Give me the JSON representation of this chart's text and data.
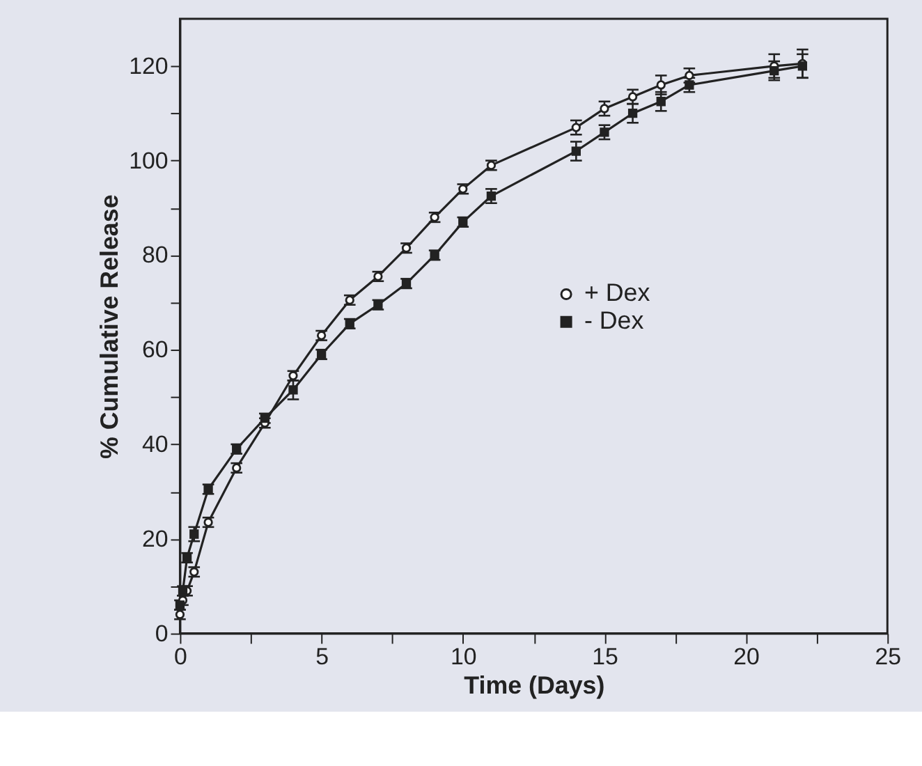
{
  "chart_data": {
    "type": "line",
    "xlabel": "Time  (Days)",
    "ylabel": "% Cumulative Release",
    "x": [
      0,
      0.1,
      0.25,
      0.5,
      1,
      2,
      3,
      4,
      5,
      6,
      7,
      8,
      9,
      10,
      11,
      14,
      15,
      16,
      17,
      18,
      21,
      22
    ],
    "series": [
      {
        "name": "+ Dex",
        "color": "#222222",
        "marker": "circle",
        "values": [
          4,
          7,
          9,
          13,
          23.5,
          35,
          44.5,
          54.5,
          63,
          70.5,
          75.5,
          81.5,
          88,
          94,
          99,
          107,
          111,
          113.5,
          116,
          118,
          120,
          120.5
        ],
        "errors": [
          1,
          1,
          1,
          1,
          1,
          1,
          1,
          1,
          1,
          1,
          1,
          1,
          1,
          1,
          1,
          1.5,
          1.5,
          1.5,
          2,
          1.5,
          2.5,
          3
        ]
      },
      {
        "name": "- Dex",
        "color": "#222222",
        "marker": "square",
        "values": [
          6,
          9,
          16,
          21,
          30.5,
          39,
          45.5,
          51.5,
          59,
          65.5,
          69.5,
          74,
          80,
          87,
          92.5,
          102,
          106,
          110,
          112.5,
          116,
          119,
          120
        ],
        "errors": [
          1,
          1,
          1,
          1.5,
          1,
          1,
          1,
          2,
          1,
          1,
          1,
          1,
          1,
          1,
          1.5,
          2,
          1.5,
          2,
          2,
          1.5,
          2,
          2.5
        ]
      }
    ],
    "xlim": [
      0,
      25
    ],
    "ylim": [
      0,
      130
    ],
    "xticks": [
      0,
      {
        "value": 2.5,
        "label": null
      },
      5,
      {
        "value": 7.5,
        "label": null
      },
      10,
      {
        "value": 12.5,
        "label": null
      },
      15,
      {
        "value": 17.5,
        "label": null
      },
      20,
      {
        "value": 22.5,
        "label": null
      },
      25
    ],
    "yticks": [
      0,
      {
        "value": 10,
        "label": null
      },
      20,
      {
        "value": 30,
        "label": null
      },
      40,
      {
        "value": 50,
        "label": null
      },
      60,
      {
        "value": 70,
        "label": null
      },
      80,
      {
        "value": 90,
        "label": null
      },
      100,
      {
        "value": 110,
        "label": null
      },
      120
    ],
    "grid": false,
    "legend": "right",
    "line_style": "solid"
  }
}
